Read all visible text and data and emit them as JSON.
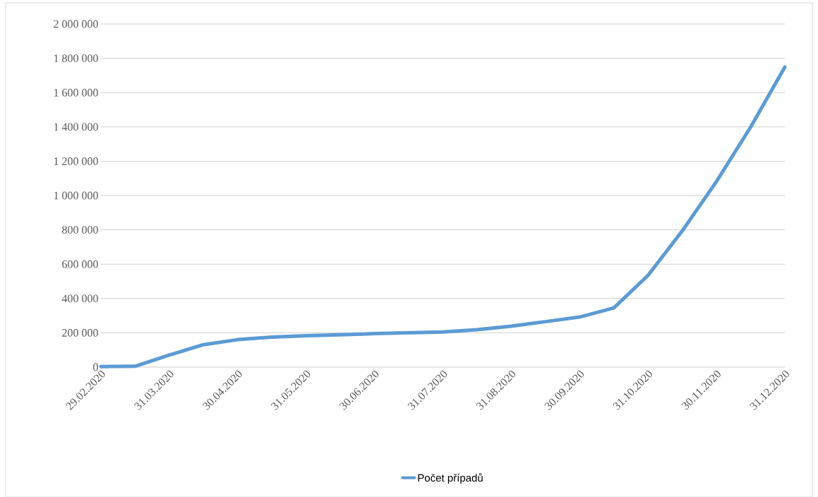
{
  "chart_data": {
    "type": "line",
    "categories": [
      "29.02.2020",
      null,
      "31.03.2020",
      null,
      "30.04.2020",
      null,
      "31.05.2020",
      null,
      "30.06.2020",
      null,
      "31.07.2020",
      null,
      "31.08.2020",
      null,
      "30.09.2020",
      null,
      "31.10.2020",
      null,
      "30.11.2020",
      null,
      "31.12.2020"
    ],
    "series": [
      {
        "name": "Počet případů",
        "color": "#5b9bd5",
        "values": [
          3000,
          5000,
          70000,
          131000,
          160000,
          175000,
          183000,
          188000,
          195000,
          200000,
          205000,
          218000,
          239000,
          265000,
          292000,
          345000,
          535000,
          794000,
          1082000,
          1399000,
          1749000
        ]
      }
    ],
    "ylim": [
      0,
      2000000
    ],
    "yticks": [
      {
        "value": 0,
        "label": "0"
      },
      {
        "value": 200000,
        "label": "200 000"
      },
      {
        "value": 400000,
        "label": "400 000"
      },
      {
        "value": 600000,
        "label": "600 000"
      },
      {
        "value": 800000,
        "label": "800 000"
      },
      {
        "value": 1000000,
        "label": "1 000 000"
      },
      {
        "value": 1200000,
        "label": "1 200 000"
      },
      {
        "value": 1400000,
        "label": "1 400 000"
      },
      {
        "value": 1600000,
        "label": "1 600 000"
      },
      {
        "value": 1800000,
        "label": "1 800 000"
      },
      {
        "value": 2000000,
        "label": "2 000 000"
      }
    ],
    "grid": "y",
    "legend": "bottom",
    "marker": "none",
    "line_style": "solid"
  }
}
